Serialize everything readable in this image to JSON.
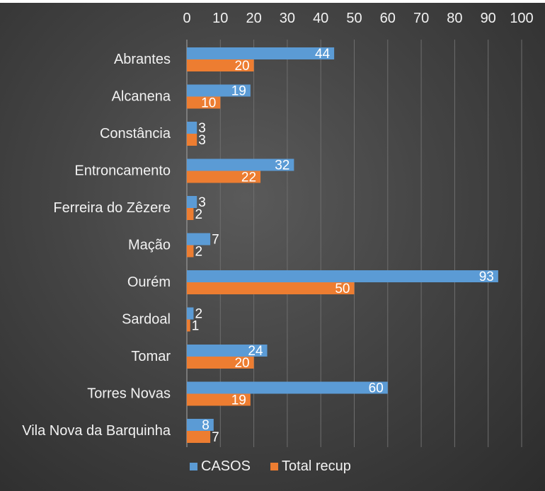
{
  "chart_data": {
    "type": "bar",
    "orientation": "horizontal",
    "categories": [
      "Abrantes",
      "Alcanena",
      "Constância",
      "Entroncamento",
      "Ferreira do Zêzere",
      "Mação",
      "Ourém",
      "Sardoal",
      "Tomar",
      "Torres Novas",
      "Vila Nova da Barquinha"
    ],
    "series": [
      {
        "name": "CASOS",
        "color": "#5b9bd5",
        "values": [
          44,
          19,
          3,
          32,
          3,
          7,
          93,
          2,
          24,
          60,
          8
        ]
      },
      {
        "name": "Total recup",
        "color": "#ed7d31",
        "values": [
          20,
          10,
          3,
          22,
          2,
          2,
          50,
          1,
          20,
          19,
          7
        ]
      }
    ],
    "xlim": [
      0,
      100
    ],
    "x_ticks": [
      0,
      10,
      20,
      30,
      40,
      50,
      60,
      70,
      80,
      90,
      100
    ],
    "x_axis_position": "top",
    "grid": true,
    "data_labels": true,
    "legend_position": "bottom"
  }
}
